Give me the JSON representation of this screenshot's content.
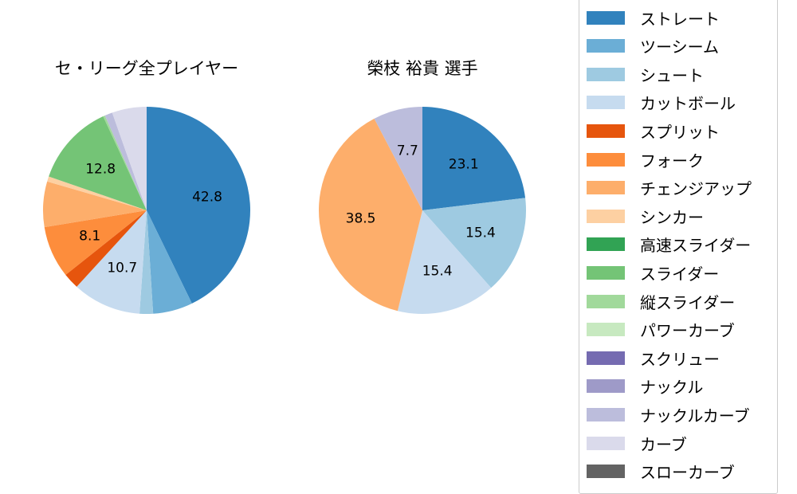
{
  "chart_data": [
    {
      "type": "pie",
      "title": "セ・リーグ全プレイヤー",
      "start_angle": 90,
      "direction": "clockwise",
      "categories": [
        "ストレート",
        "ツーシーム",
        "シュート",
        "カットボール",
        "スプリット",
        "フォーク",
        "チェンジアップ",
        "シンカー",
        "スライダー",
        "縦スライダー",
        "ナックルカーブ",
        "カーブ"
      ],
      "values": [
        42.8,
        6.2,
        2.1,
        10.7,
        2.5,
        8.1,
        7.1,
        0.8,
        12.8,
        0.3,
        1.2,
        5.4
      ],
      "labels_shown": [
        "42.8",
        "10.7",
        "8.1",
        "12.8"
      ]
    },
    {
      "type": "pie",
      "title": "榮枝 裕貴  選手",
      "start_angle": 90,
      "direction": "clockwise",
      "categories": [
        "ストレート",
        "シュート",
        "カットボール",
        "チェンジアップ",
        "ナックルカーブ"
      ],
      "values": [
        23.1,
        15.4,
        15.4,
        38.5,
        7.7
      ],
      "labels_shown": [
        "23.1",
        "15.4",
        "15.4",
        "38.5",
        "7.7"
      ]
    }
  ],
  "legend": {
    "items": [
      {
        "label": "ストレート",
        "color": "#3182bd"
      },
      {
        "label": "ツーシーム",
        "color": "#6baed6"
      },
      {
        "label": "シュート",
        "color": "#9ecae1"
      },
      {
        "label": "カットボール",
        "color": "#c6dbef"
      },
      {
        "label": "スプリット",
        "color": "#e6550d"
      },
      {
        "label": "フォーク",
        "color": "#fd8d3c"
      },
      {
        "label": "チェンジアップ",
        "color": "#fdae6b"
      },
      {
        "label": "シンカー",
        "color": "#fdd0a2"
      },
      {
        "label": "高速スライダー",
        "color": "#31a354"
      },
      {
        "label": "スライダー",
        "color": "#74c476"
      },
      {
        "label": "縦スライダー",
        "color": "#a1d99b"
      },
      {
        "label": "パワーカーブ",
        "color": "#c7e9c0"
      },
      {
        "label": "スクリュー",
        "color": "#756bb1"
      },
      {
        "label": "ナックル",
        "color": "#9e9ac8"
      },
      {
        "label": "ナックルカーブ",
        "color": "#bcbddc"
      },
      {
        "label": "カーブ",
        "color": "#dadaeb"
      },
      {
        "label": "スローカーブ",
        "color": "#636363"
      }
    ]
  }
}
